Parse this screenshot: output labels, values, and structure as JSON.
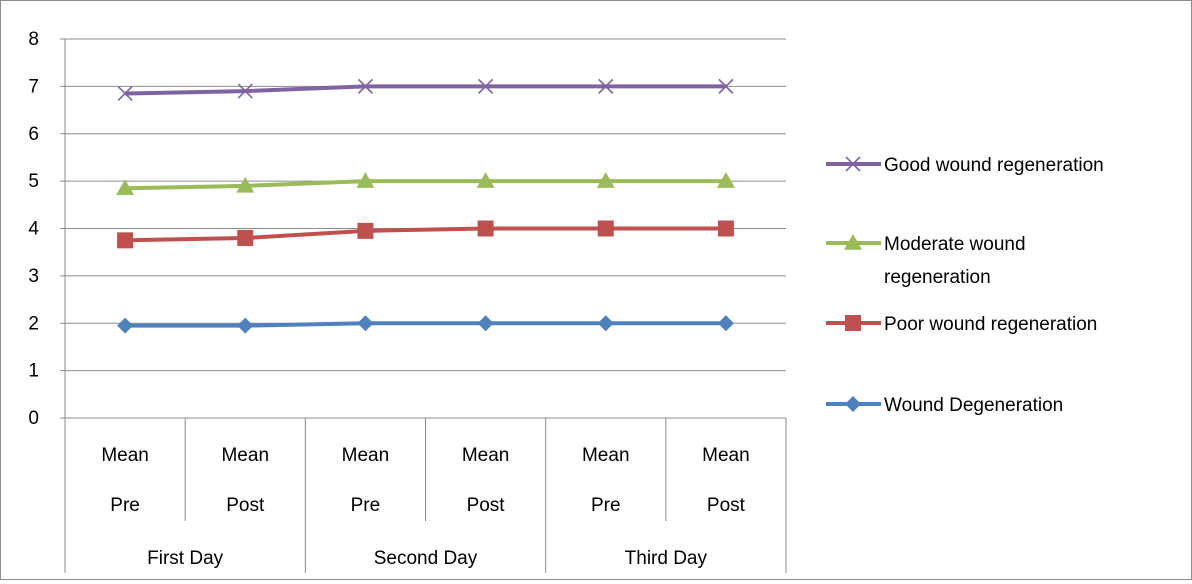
{
  "chart_data": {
    "type": "line",
    "title": "",
    "xlabel": "",
    "ylabel": "",
    "ylim": [
      0,
      8
    ],
    "yticks": [
      "0",
      "1",
      "2",
      "3",
      "4",
      "5",
      "6",
      "7",
      "8"
    ],
    "grid": true,
    "legend_position": "right",
    "categories": [
      {
        "line1": "Mean",
        "line2": "Pre"
      },
      {
        "line1": "Mean",
        "line2": "Post"
      },
      {
        "line1": "Mean",
        "line2": "Pre"
      },
      {
        "line1": "Mean",
        "line2": "Post"
      },
      {
        "line1": "Mean",
        "line2": "Pre"
      },
      {
        "line1": "Mean",
        "line2": "Post"
      }
    ],
    "groups": [
      {
        "label": "First Day",
        "span": 2
      },
      {
        "label": "Second Day",
        "span": 2
      },
      {
        "label": "Third Day",
        "span": 2
      }
    ],
    "series": [
      {
        "name": "Good wound regeneration",
        "color": "#8064a2",
        "marker": "x",
        "values": [
          6.85,
          6.9,
          7,
          7,
          7,
          7
        ]
      },
      {
        "name": "Moderate wound regeneration",
        "name_lines": [
          "Moderate wound",
          "regeneration"
        ],
        "color": "#9bbb59",
        "marker": "triangle",
        "values": [
          4.85,
          4.9,
          5,
          5,
          5,
          5
        ]
      },
      {
        "name": "Poor wound regeneration",
        "color": "#c0504d",
        "marker": "square",
        "values": [
          3.75,
          3.8,
          3.95,
          4,
          4,
          4
        ]
      },
      {
        "name": "Wound Degeneration",
        "color": "#4f81bd",
        "marker": "diamond",
        "values": [
          1.95,
          1.95,
          2,
          2,
          2,
          2
        ]
      }
    ]
  }
}
